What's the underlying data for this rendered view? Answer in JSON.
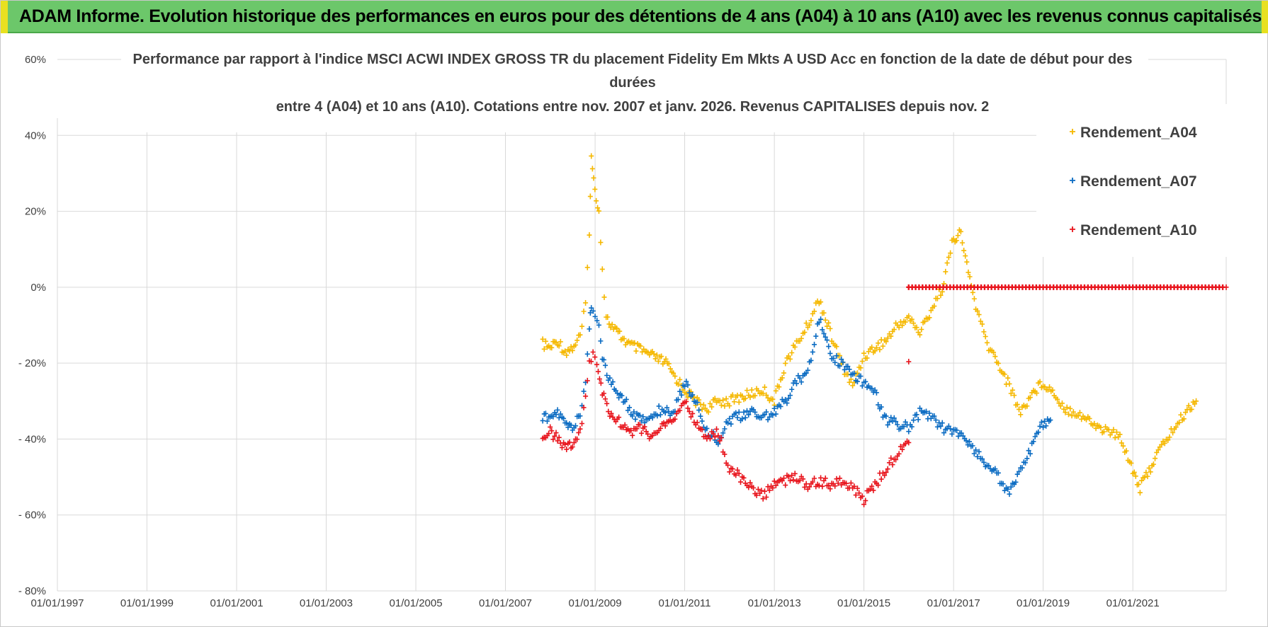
{
  "banner": {
    "title": "ADAM Informe. Evolution historique des performances en euros pour des détentions de 4 ans (A04) à 10 ans (A10) avec les revenus connus capitalisés"
  },
  "colors": {
    "banner_bg": "#6cc76a",
    "banner_corner": "#e8e020",
    "A04": "#f5b800",
    "A07": "#0a6bc2",
    "A10": "#e8141c",
    "grid": "#d9d9d9",
    "text": "#404040"
  },
  "chart_data": {
    "type": "scatter",
    "title_lines": [
      "Performance par rapport à l'indice MSCI ACWI INDEX GROSS TR  du placement Fidelity Em Mkts A USD Acc en fonction de la date de début pour des",
      "durées",
      "entre 4 (A04) et 10 ans (A10). Cotations entre nov. 2007 et janv. 2026. Revenus CAPITALISES depuis nov. 2"
    ],
    "x_axis": {
      "type": "date",
      "range": [
        "1997-01-01",
        "2023-02-01"
      ],
      "tick_labels": [
        "01/01/1997",
        "01/01/1999",
        "01/01/2001",
        "01/01/2003",
        "01/01/2005",
        "01/01/2007",
        "01/01/2009",
        "01/01/2011",
        "01/01/2013",
        "01/01/2015",
        "01/01/2017",
        "01/01/2019",
        "01/01/2021"
      ]
    },
    "y_axis": {
      "range": [
        -80,
        60
      ],
      "unit": "%",
      "ticks": [
        60,
        40,
        20,
        0,
        -20,
        -40,
        -60,
        -80
      ],
      "tick_labels": [
        "60%",
        "40%",
        "20%",
        "0%",
        "- 20%",
        "- 40%",
        "- 60%",
        "- 80%"
      ]
    },
    "grid": true,
    "legend": {
      "position": "right-top",
      "entries": [
        "Rendement_A04",
        "Rendement_A07",
        "Rendement_A10"
      ]
    },
    "marker": "+",
    "series": [
      {
        "name": "Rendement_A04",
        "color": "#f5b800",
        "points": [
          [
            "2007-11-01",
            -15
          ],
          [
            "2008-01-01",
            -16
          ],
          [
            "2008-03-01",
            -14
          ],
          [
            "2008-05-01",
            -17
          ],
          [
            "2008-07-01",
            -16
          ],
          [
            "2008-09-01",
            -13
          ],
          [
            "2008-10-15",
            -5
          ],
          [
            "2008-11-15",
            15
          ],
          [
            "2008-12-01",
            34
          ],
          [
            "2008-12-20",
            28
          ],
          [
            "2009-01-10",
            24
          ],
          [
            "2009-02-01",
            20
          ],
          [
            "2009-03-01",
            5
          ],
          [
            "2009-04-01",
            -8
          ],
          [
            "2009-06-01",
            -11
          ],
          [
            "2009-08-01",
            -13
          ],
          [
            "2009-10-01",
            -15
          ],
          [
            "2009-12-01",
            -16
          ],
          [
            "2010-02-01",
            -17
          ],
          [
            "2010-04-01",
            -18
          ],
          [
            "2010-06-01",
            -19
          ],
          [
            "2010-08-01",
            -20
          ],
          [
            "2010-10-01",
            -23
          ],
          [
            "2011-01-01",
            -27
          ],
          [
            "2011-04-01",
            -30
          ],
          [
            "2011-07-01",
            -32
          ],
          [
            "2011-10-01",
            -30
          ],
          [
            "2012-01-01",
            -30
          ],
          [
            "2012-04-01",
            -29
          ],
          [
            "2012-07-01",
            -28
          ],
          [
            "2012-10-01",
            -27
          ],
          [
            "2013-01-01",
            -30
          ],
          [
            "2013-04-01",
            -20
          ],
          [
            "2013-07-01",
            -15
          ],
          [
            "2013-10-01",
            -10
          ],
          [
            "2014-01-01",
            -3
          ],
          [
            "2014-04-01",
            -12
          ],
          [
            "2014-07-01",
            -20
          ],
          [
            "2014-10-01",
            -26
          ],
          [
            "2015-01-01",
            -18
          ],
          [
            "2015-04-01",
            -16
          ],
          [
            "2015-07-01",
            -14
          ],
          [
            "2015-10-01",
            -10
          ],
          [
            "2016-01-01",
            -8
          ],
          [
            "2016-04-01",
            -12
          ],
          [
            "2016-07-01",
            -6
          ],
          [
            "2016-10-01",
            0
          ],
          [
            "2017-01-01",
            13
          ],
          [
            "2017-03-01",
            14
          ],
          [
            "2017-05-01",
            4
          ],
          [
            "2017-07-01",
            -5
          ],
          [
            "2017-10-01",
            -15
          ],
          [
            "2018-01-01",
            -20
          ],
          [
            "2018-04-01",
            -26
          ],
          [
            "2018-07-01",
            -33
          ],
          [
            "2018-10-01",
            -28
          ],
          [
            "2019-01-01",
            -25
          ],
          [
            "2019-04-01",
            -28
          ],
          [
            "2019-07-01",
            -32
          ],
          [
            "2019-10-01",
            -33
          ],
          [
            "2020-01-01",
            -35
          ],
          [
            "2020-04-01",
            -37
          ],
          [
            "2020-07-01",
            -38
          ],
          [
            "2020-10-01",
            -40
          ],
          [
            "2021-01-01",
            -48
          ],
          [
            "2021-03-01",
            -53
          ],
          [
            "2021-07-01",
            -45
          ],
          [
            "2021-10-01",
            -40
          ],
          [
            "2022-01-01",
            -36
          ],
          [
            "2022-04-01",
            -32
          ],
          [
            "2022-06-01",
            -30
          ]
        ]
      },
      {
        "name": "Rendement_A07",
        "color": "#0a6bc2",
        "points": [
          [
            "2007-11-01",
            -34
          ],
          [
            "2008-01-01",
            -35
          ],
          [
            "2008-03-01",
            -33
          ],
          [
            "2008-05-01",
            -36
          ],
          [
            "2008-07-01",
            -37
          ],
          [
            "2008-09-01",
            -34
          ],
          [
            "2008-10-15",
            -25
          ],
          [
            "2008-11-15",
            -10
          ],
          [
            "2008-12-01",
            -5
          ],
          [
            "2009-01-01",
            -7
          ],
          [
            "2009-02-01",
            -10
          ],
          [
            "2009-03-01",
            -18
          ],
          [
            "2009-05-01",
            -25
          ],
          [
            "2009-07-01",
            -28
          ],
          [
            "2009-09-01",
            -30
          ],
          [
            "2009-11-01",
            -33
          ],
          [
            "2010-01-01",
            -35
          ],
          [
            "2010-04-01",
            -34
          ],
          [
            "2010-07-01",
            -32
          ],
          [
            "2010-10-01",
            -33
          ],
          [
            "2011-01-01",
            -25
          ],
          [
            "2011-04-01",
            -30
          ],
          [
            "2011-07-01",
            -38
          ],
          [
            "2011-10-01",
            -40
          ],
          [
            "2012-01-01",
            -35
          ],
          [
            "2012-04-01",
            -34
          ],
          [
            "2012-07-01",
            -33
          ],
          [
            "2012-10-01",
            -34
          ],
          [
            "2013-01-01",
            -33
          ],
          [
            "2013-04-01",
            -30
          ],
          [
            "2013-07-01",
            -25
          ],
          [
            "2013-10-01",
            -22
          ],
          [
            "2014-01-01",
            -8
          ],
          [
            "2014-04-01",
            -18
          ],
          [
            "2014-07-01",
            -20
          ],
          [
            "2014-10-01",
            -23
          ],
          [
            "2015-01-01",
            -25
          ],
          [
            "2015-04-01",
            -28
          ],
          [
            "2015-07-01",
            -35
          ],
          [
            "2015-10-01",
            -36
          ],
          [
            "2016-01-01",
            -37
          ],
          [
            "2016-04-01",
            -33
          ],
          [
            "2016-07-01",
            -34
          ],
          [
            "2016-10-01",
            -37
          ],
          [
            "2017-01-01",
            -38
          ],
          [
            "2017-04-01",
            -40
          ],
          [
            "2017-07-01",
            -43
          ],
          [
            "2017-10-01",
            -47
          ],
          [
            "2018-01-01",
            -50
          ],
          [
            "2018-04-01",
            -54
          ],
          [
            "2018-07-01",
            -48
          ],
          [
            "2018-10-01",
            -42
          ],
          [
            "2019-01-01",
            -36
          ],
          [
            "2019-03-01",
            -35
          ]
        ]
      },
      {
        "name": "Rendement_A10",
        "color": "#e8141c",
        "points": [
          [
            "2007-11-01",
            -39
          ],
          [
            "2008-01-01",
            -38
          ],
          [
            "2008-03-01",
            -40
          ],
          [
            "2008-05-01",
            -42
          ],
          [
            "2008-07-01",
            -41
          ],
          [
            "2008-09-01",
            -38
          ],
          [
            "2008-10-15",
            -30
          ],
          [
            "2008-11-15",
            -20
          ],
          [
            "2008-12-15",
            -17
          ],
          [
            "2009-01-15",
            -20
          ],
          [
            "2009-03-01",
            -28
          ],
          [
            "2009-05-01",
            -33
          ],
          [
            "2009-07-01",
            -35
          ],
          [
            "2009-09-01",
            -37
          ],
          [
            "2009-11-01",
            -38
          ],
          [
            "2010-01-01",
            -37
          ],
          [
            "2010-04-01",
            -39
          ],
          [
            "2010-07-01",
            -37
          ],
          [
            "2010-10-01",
            -35
          ],
          [
            "2011-01-01",
            -30
          ],
          [
            "2011-04-01",
            -36
          ],
          [
            "2011-07-01",
            -40
          ],
          [
            "2011-10-01",
            -38
          ],
          [
            "2012-01-01",
            -48
          ],
          [
            "2012-04-01",
            -50
          ],
          [
            "2012-07-01",
            -53
          ],
          [
            "2012-10-01",
            -55
          ],
          [
            "2013-01-01",
            -52
          ],
          [
            "2013-04-01",
            -51
          ],
          [
            "2013-07-01",
            -50
          ],
          [
            "2013-10-01",
            -52
          ],
          [
            "2014-01-01",
            -51
          ],
          [
            "2014-04-01",
            -52
          ],
          [
            "2014-07-01",
            -51
          ],
          [
            "2014-10-01",
            -53
          ],
          [
            "2015-01-01",
            -56
          ],
          [
            "2015-04-01",
            -52
          ],
          [
            "2015-07-01",
            -48
          ],
          [
            "2015-10-01",
            -44
          ],
          [
            "2016-01-01",
            -40
          ],
          [
            "2016-01-01",
            0
          ],
          [
            "2017-01-01",
            0
          ],
          [
            "2018-01-01",
            0
          ],
          [
            "2019-01-01",
            0
          ],
          [
            "2020-01-01",
            0
          ],
          [
            "2021-01-01",
            0
          ],
          [
            "2022-01-01",
            0
          ],
          [
            "2023-02-01",
            0
          ]
        ]
      }
    ]
  }
}
